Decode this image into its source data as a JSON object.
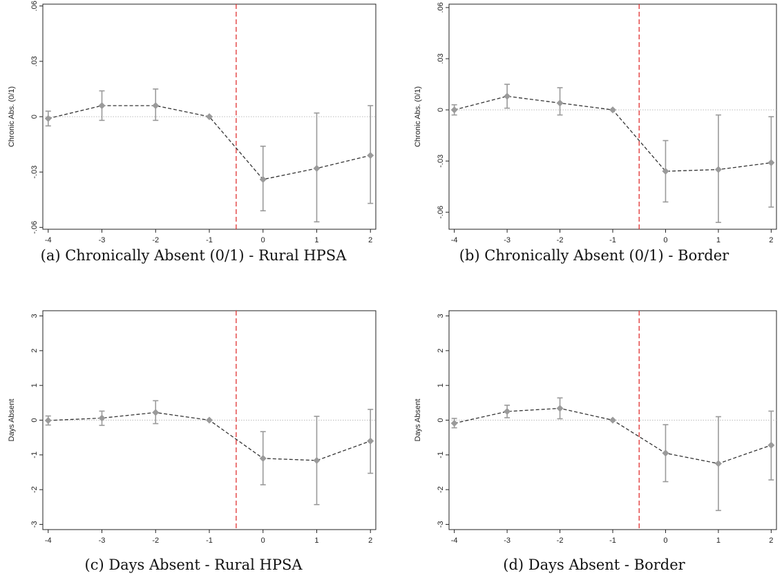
{
  "chart_data": [
    {
      "type": "line",
      "caption": "(a) Chronically Absent (0/1) - Rural HPSA",
      "ylabel": "Chronic Abs. (0/1)",
      "xlabel": "",
      "x": [
        -4,
        -3,
        -2,
        -1,
        0,
        1,
        2
      ],
      "estimates": [
        -0.001,
        0.006,
        0.006,
        0.0,
        -0.034,
        -0.028,
        -0.021
      ],
      "ci_low": [
        -0.005,
        -0.002,
        -0.002,
        0.0,
        -0.051,
        -0.057,
        -0.047
      ],
      "ci_high": [
        0.003,
        0.014,
        0.015,
        0.0,
        -0.016,
        0.002,
        0.006
      ],
      "ylim": [
        -0.061,
        0.061
      ],
      "yticks": [
        0.06,
        0.03,
        0,
        -0.03,
        -0.06
      ],
      "ytick_labels": [
        ".06",
        ".03",
        "0",
        "-.03",
        "-.06"
      ],
      "xlim": [
        -4.1,
        2.1
      ],
      "xticks": [
        -4,
        -3,
        -2,
        -1,
        0,
        1,
        2
      ],
      "xtick_labels": [
        "-4",
        "-3",
        "-2",
        "-1",
        "0",
        "1",
        "2"
      ],
      "vline": -0.5,
      "hline": 0,
      "colors": {
        "marker": "#9a9a9a",
        "line": "#333333",
        "vline": "#e03030",
        "hline": "#bbbbbb"
      }
    },
    {
      "type": "line",
      "caption": "(b) Chronically Absent (0/1) - Border",
      "ylabel": "Chronic Abs. (0/1)",
      "xlabel": "",
      "x": [
        -4,
        -3,
        -2,
        -1,
        0,
        1,
        2
      ],
      "estimates": [
        0.0,
        0.008,
        0.004,
        0.0,
        -0.036,
        -0.035,
        -0.031
      ],
      "ci_low": [
        -0.003,
        0.001,
        -0.003,
        0.0,
        -0.054,
        -0.066,
        -0.057
      ],
      "ci_high": [
        0.003,
        0.015,
        0.013,
        0.0,
        -0.018,
        -0.003,
        -0.004
      ],
      "ylim": [
        -0.07,
        0.062
      ],
      "yticks": [
        0.06,
        0.03,
        0,
        -0.03,
        -0.06
      ],
      "ytick_labels": [
        ".06",
        ".03",
        "0",
        "-.03",
        "-.06"
      ],
      "xlim": [
        -4.1,
        2.1
      ],
      "xticks": [
        -4,
        -3,
        -2,
        -1,
        0,
        1,
        2
      ],
      "xtick_labels": [
        "-4",
        "-3",
        "-2",
        "-1",
        "0",
        "1",
        "2"
      ],
      "vline": -0.5,
      "hline": 0,
      "colors": {
        "marker": "#9a9a9a",
        "line": "#333333",
        "vline": "#e03030",
        "hline": "#bbbbbb"
      }
    },
    {
      "type": "line",
      "caption": "(c) Days Absent - Rural HPSA",
      "ylabel": "Days Absent",
      "xlabel": "",
      "x": [
        -4,
        -3,
        -2,
        -1,
        0,
        1,
        2
      ],
      "estimates": [
        -0.01,
        0.06,
        0.22,
        0.0,
        -1.1,
        -1.16,
        -0.6
      ],
      "ci_low": [
        -0.14,
        -0.15,
        -0.1,
        0.0,
        -1.86,
        -2.43,
        -1.53
      ],
      "ci_high": [
        0.12,
        0.26,
        0.56,
        0.0,
        -0.33,
        0.11,
        0.31
      ],
      "ylim": [
        -3.15,
        3.15
      ],
      "yticks": [
        3,
        2,
        1,
        0,
        -1,
        -2,
        -3
      ],
      "ytick_labels": [
        "3",
        "2",
        "1",
        "0",
        "-1",
        "-2",
        "-3"
      ],
      "xlim": [
        -4.1,
        2.1
      ],
      "xticks": [
        -4,
        -3,
        -2,
        -1,
        0,
        1,
        2
      ],
      "xtick_labels": [
        "-4",
        "-3",
        "-2",
        "-1",
        "0",
        "1",
        "2"
      ],
      "vline": -0.5,
      "hline": 0,
      "colors": {
        "marker": "#9a9a9a",
        "line": "#333333",
        "vline": "#e03030",
        "hline": "#bbbbbb"
      }
    },
    {
      "type": "line",
      "caption": "(d) Days Absent - Border",
      "ylabel": "Days Absent",
      "xlabel": "",
      "x": [
        -4,
        -3,
        -2,
        -1,
        0,
        1,
        2
      ],
      "estimates": [
        -0.09,
        0.25,
        0.34,
        0.0,
        -0.95,
        -1.25,
        -0.72
      ],
      "ci_low": [
        -0.22,
        0.07,
        0.04,
        0.0,
        -1.77,
        -2.6,
        -1.72
      ],
      "ci_high": [
        0.05,
        0.43,
        0.64,
        0.0,
        -0.13,
        0.1,
        0.26
      ],
      "ylim": [
        -3.15,
        3.15
      ],
      "yticks": [
        3,
        2,
        1,
        0,
        -1,
        -2,
        -3
      ],
      "ytick_labels": [
        "3",
        "2",
        "1",
        "0",
        "-1",
        "-2",
        "-3"
      ],
      "xlim": [
        -4.1,
        2.1
      ],
      "xticks": [
        -4,
        -3,
        -2,
        -1,
        0,
        1,
        2
      ],
      "xtick_labels": [
        "-4",
        "-3",
        "-2",
        "-1",
        "0",
        "1",
        "2"
      ],
      "vline": -0.5,
      "hline": 0,
      "colors": {
        "marker": "#9a9a9a",
        "line": "#333333",
        "vline": "#e03030",
        "hline": "#bbbbbb"
      }
    }
  ]
}
